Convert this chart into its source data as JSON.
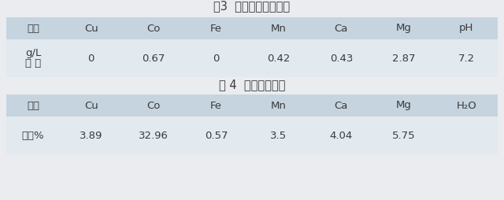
{
  "title1": "表3  一段沉钴后液成分",
  "title2": "表 4  氢氧化钴成分",
  "table1_header": [
    "元素",
    "Cu",
    "Co",
    "Fe",
    "Mn",
    "Ca",
    "Mg",
    "pH"
  ],
  "table1_row_label_line1": "含 量",
  "table1_row_label_line2": "g/L",
  "table1_values": [
    "0",
    "0.67",
    "0",
    "0.42",
    "0.43",
    "2.87",
    "7.2"
  ],
  "table2_header": [
    "元素",
    "Cu",
    "Co",
    "Fe",
    "Mn",
    "Ca",
    "Mg",
    "H₂O"
  ],
  "table2_row_label": "含量%",
  "table2_values": [
    "3.89",
    "32.96",
    "0.57",
    "3.5",
    "4.04",
    "5.75",
    ""
  ],
  "header_bg": "#c6d4e0",
  "row_bg": "#e2eaf0",
  "bg_color": "#eaecf0",
  "title_fontsize": 10.5,
  "cell_fontsize": 9.5,
  "text_color": "#3a3a3a"
}
